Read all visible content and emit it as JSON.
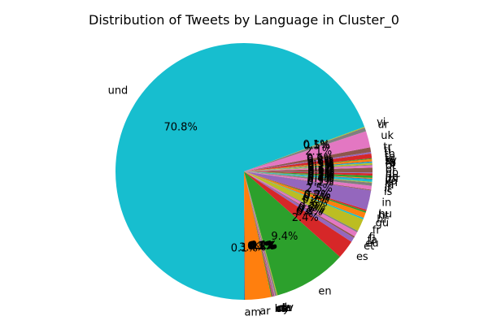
{
  "chart_data": {
    "type": "pie",
    "title": "Distribution of Tweets by Language in Cluster_0",
    "start_angle_deg": 270,
    "direction": "counterclockwise",
    "slices": [
      {
        "label": "am",
        "value": 0.1,
        "pct_label": "0.1%",
        "color": "#1f77b4"
      },
      {
        "label": "ar",
        "value": 3.4,
        "pct_label": "3.4%",
        "color": "#ff7f0e"
      },
      {
        "label": "bn",
        "value": 0.1,
        "pct_label": "0.1%",
        "color": "#2ca02c"
      },
      {
        "label": "ca",
        "value": 0.1,
        "pct_label": "0.1%",
        "color": "#d62728"
      },
      {
        "label": "cs",
        "value": 0.1,
        "pct_label": "0.1%",
        "color": "#9467bd"
      },
      {
        "label": "cy",
        "value": 0.1,
        "pct_label": "0.1%",
        "color": "#8c564b"
      },
      {
        "label": "da",
        "value": 0.1,
        "pct_label": "0.1%",
        "color": "#e377c2"
      },
      {
        "label": "de",
        "value": 0.2,
        "pct_label": "0.2%",
        "color": "#7f7f7f"
      },
      {
        "label": "dv",
        "value": 0.1,
        "pct_label": "0.1%",
        "color": "#bcbd22"
      },
      {
        "label": "en",
        "value": 9.4,
        "pct_label": "9.4%",
        "color": "#2ca02c"
      },
      {
        "label": "es",
        "value": 2.4,
        "pct_label": "2.4%",
        "color": "#d62728"
      },
      {
        "label": "et",
        "value": 0.6,
        "pct_label": "0.6%",
        "color": "#9467bd"
      },
      {
        "label": "eu",
        "value": 0.2,
        "pct_label": "0.2%",
        "color": "#8c564b"
      },
      {
        "label": "fa",
        "value": 0.6,
        "pct_label": "0.6%",
        "color": "#e377c2"
      },
      {
        "label": "fi",
        "value": 0.2,
        "pct_label": "0.2%",
        "color": "#7f7f7f"
      },
      {
        "label": "fr",
        "value": 1.6,
        "pct_label": "1.6%",
        "color": "#bcbd22"
      },
      {
        "label": "gu",
        "value": 0.2,
        "pct_label": "0.2%",
        "color": "#17becf"
      },
      {
        "label": "hi",
        "value": 0.7,
        "pct_label": "0.7%",
        "color": "#ff7f0e"
      },
      {
        "label": "ht",
        "value": 0.2,
        "pct_label": "0.2%",
        "color": "#2ca02c"
      },
      {
        "label": "hu",
        "value": 0.2,
        "pct_label": "0.2%",
        "color": "#d62728"
      },
      {
        "label": "in",
        "value": 2.5,
        "pct_label": "2.5%",
        "color": "#9467bd"
      },
      {
        "label": "is",
        "value": 0.1,
        "pct_label": "0.1%",
        "color": "#8c564b"
      },
      {
        "label": "it",
        "value": 0.5,
        "pct_label": "0.5%",
        "color": "#e377c2"
      },
      {
        "label": "ja",
        "value": 0.4,
        "pct_label": "0.4%",
        "color": "#7f7f7f"
      },
      {
        "label": "kn",
        "value": 0.1,
        "pct_label": "0.1%",
        "color": "#bcbd22"
      },
      {
        "label": "ko",
        "value": 0.3,
        "pct_label": "0.3%",
        "color": "#17becf"
      },
      {
        "label": "lt",
        "value": 0.1,
        "pct_label": "0.1%",
        "color": "#1f77b4"
      },
      {
        "label": "mr",
        "value": 0.1,
        "pct_label": "0.1%",
        "color": "#ff7f0e"
      },
      {
        "label": "ne",
        "value": 0.3,
        "pct_label": "0.3%",
        "color": "#2ca02c"
      },
      {
        "label": "nl",
        "value": 0.3,
        "pct_label": "0.3%",
        "color": "#d62728"
      },
      {
        "label": "no",
        "value": 0.1,
        "pct_label": "0.1%",
        "color": "#9467bd"
      },
      {
        "label": "pl",
        "value": 0.6,
        "pct_label": "0.6%",
        "color": "#8c564b"
      },
      {
        "label": "pt",
        "value": 0.3,
        "pct_label": "0.3%",
        "color": "#e377c2"
      },
      {
        "label": "ro",
        "value": 0.1,
        "pct_label": "0.1%",
        "color": "#7f7f7f"
      },
      {
        "label": "ru",
        "value": 0.2,
        "pct_label": "0.2%",
        "color": "#bcbd22"
      },
      {
        "label": "sl",
        "value": 0.1,
        "pct_label": "0.1%",
        "color": "#17becf"
      },
      {
        "label": "sv",
        "value": 0.1,
        "pct_label": "0.1%",
        "color": "#1f77b4"
      },
      {
        "label": "ta",
        "value": 0.3,
        "pct_label": "0.3%",
        "color": "#ff7f0e"
      },
      {
        "label": "te",
        "value": 0.1,
        "pct_label": "0.1%",
        "color": "#2ca02c"
      },
      {
        "label": "th",
        "value": 0.6,
        "pct_label": "0.6%",
        "color": "#d62728"
      },
      {
        "label": "tl",
        "value": 0.2,
        "pct_label": "0.2%",
        "color": "#9467bd"
      },
      {
        "label": "tr",
        "value": 0.6,
        "pct_label": "0.6%",
        "color": "#8c564b"
      },
      {
        "label": "uk",
        "value": 2.1,
        "pct_label": "2.1%",
        "color": "#e377c2"
      },
      {
        "label": "ur",
        "value": 0.5,
        "pct_label": "0.5%",
        "color": "#7f7f7f"
      },
      {
        "label": "vi",
        "value": 0.1,
        "pct_label": "0.1%",
        "color": "#bcbd22"
      },
      {
        "label": "und",
        "value": 70.8,
        "pct_label": "70.8%",
        "color": "#17becf"
      }
    ]
  }
}
